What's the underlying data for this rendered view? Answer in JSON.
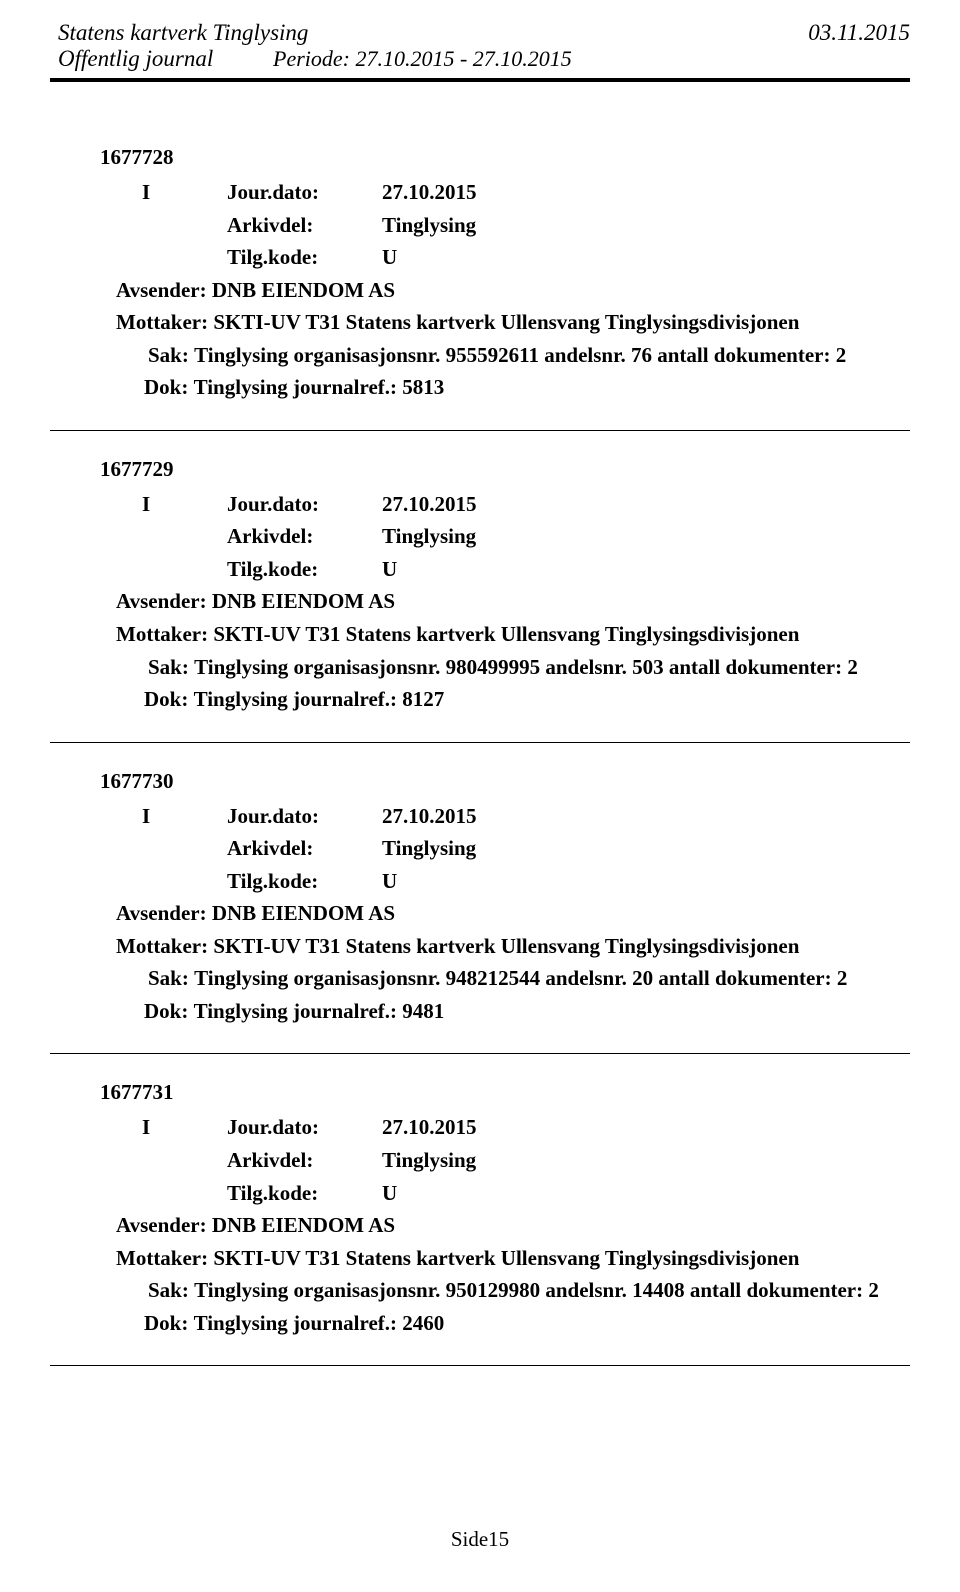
{
  "header": {
    "org": "Statens kartverk Tinglysing",
    "date": "03.11.2015",
    "journal_label": "Offentlig journal",
    "periode_label": "Periode:",
    "periode_value": "27.10.2015 - 27.10.2015"
  },
  "labels": {
    "jour_dato": "Jour.dato:",
    "arkivdel": "Arkivdel:",
    "tilg_kode": "Tilg.kode:",
    "avsender": "Avsender:",
    "mottaker": "Mottaker:",
    "sak": "Sak:",
    "dok": "Dok:"
  },
  "entries": [
    {
      "id": "1677728",
      "type": "I",
      "jour_dato": "27.10.2015",
      "arkivdel": "Tinglysing",
      "tilg_kode": "U",
      "avsender": "DNB EIENDOM AS",
      "mottaker": "SKTI-UV T31 Statens kartverk Ullensvang Tinglysingsdivisjonen",
      "sak": "Tinglysing organisasjonsnr. 955592611 andelsnr. 76 antall dokumenter: 2",
      "dok": "Tinglysing journalref.: 5813"
    },
    {
      "id": "1677729",
      "type": "I",
      "jour_dato": "27.10.2015",
      "arkivdel": "Tinglysing",
      "tilg_kode": "U",
      "avsender": "DNB EIENDOM AS",
      "mottaker": "SKTI-UV T31 Statens kartverk Ullensvang Tinglysingsdivisjonen",
      "sak": "Tinglysing organisasjonsnr. 980499995 andelsnr. 503 antall dokumenter: 2",
      "dok": "Tinglysing journalref.: 8127"
    },
    {
      "id": "1677730",
      "type": "I",
      "jour_dato": "27.10.2015",
      "arkivdel": "Tinglysing",
      "tilg_kode": "U",
      "avsender": "DNB EIENDOM AS",
      "mottaker": "SKTI-UV T31 Statens kartverk Ullensvang Tinglysingsdivisjonen",
      "sak": "Tinglysing organisasjonsnr. 948212544 andelsnr. 20 antall dokumenter: 2",
      "dok": "Tinglysing journalref.: 9481"
    },
    {
      "id": "1677731",
      "type": "I",
      "jour_dato": "27.10.2015",
      "arkivdel": "Tinglysing",
      "tilg_kode": "U",
      "avsender": "DNB EIENDOM AS",
      "mottaker": "SKTI-UV T31 Statens kartverk Ullensvang Tinglysingsdivisjonen",
      "sak": "Tinglysing organisasjonsnr. 950129980 andelsnr. 14408 antall dokumenter: 2",
      "dok": "Tinglysing journalref.: 2460"
    }
  ],
  "footer": {
    "page": "Side15"
  }
}
